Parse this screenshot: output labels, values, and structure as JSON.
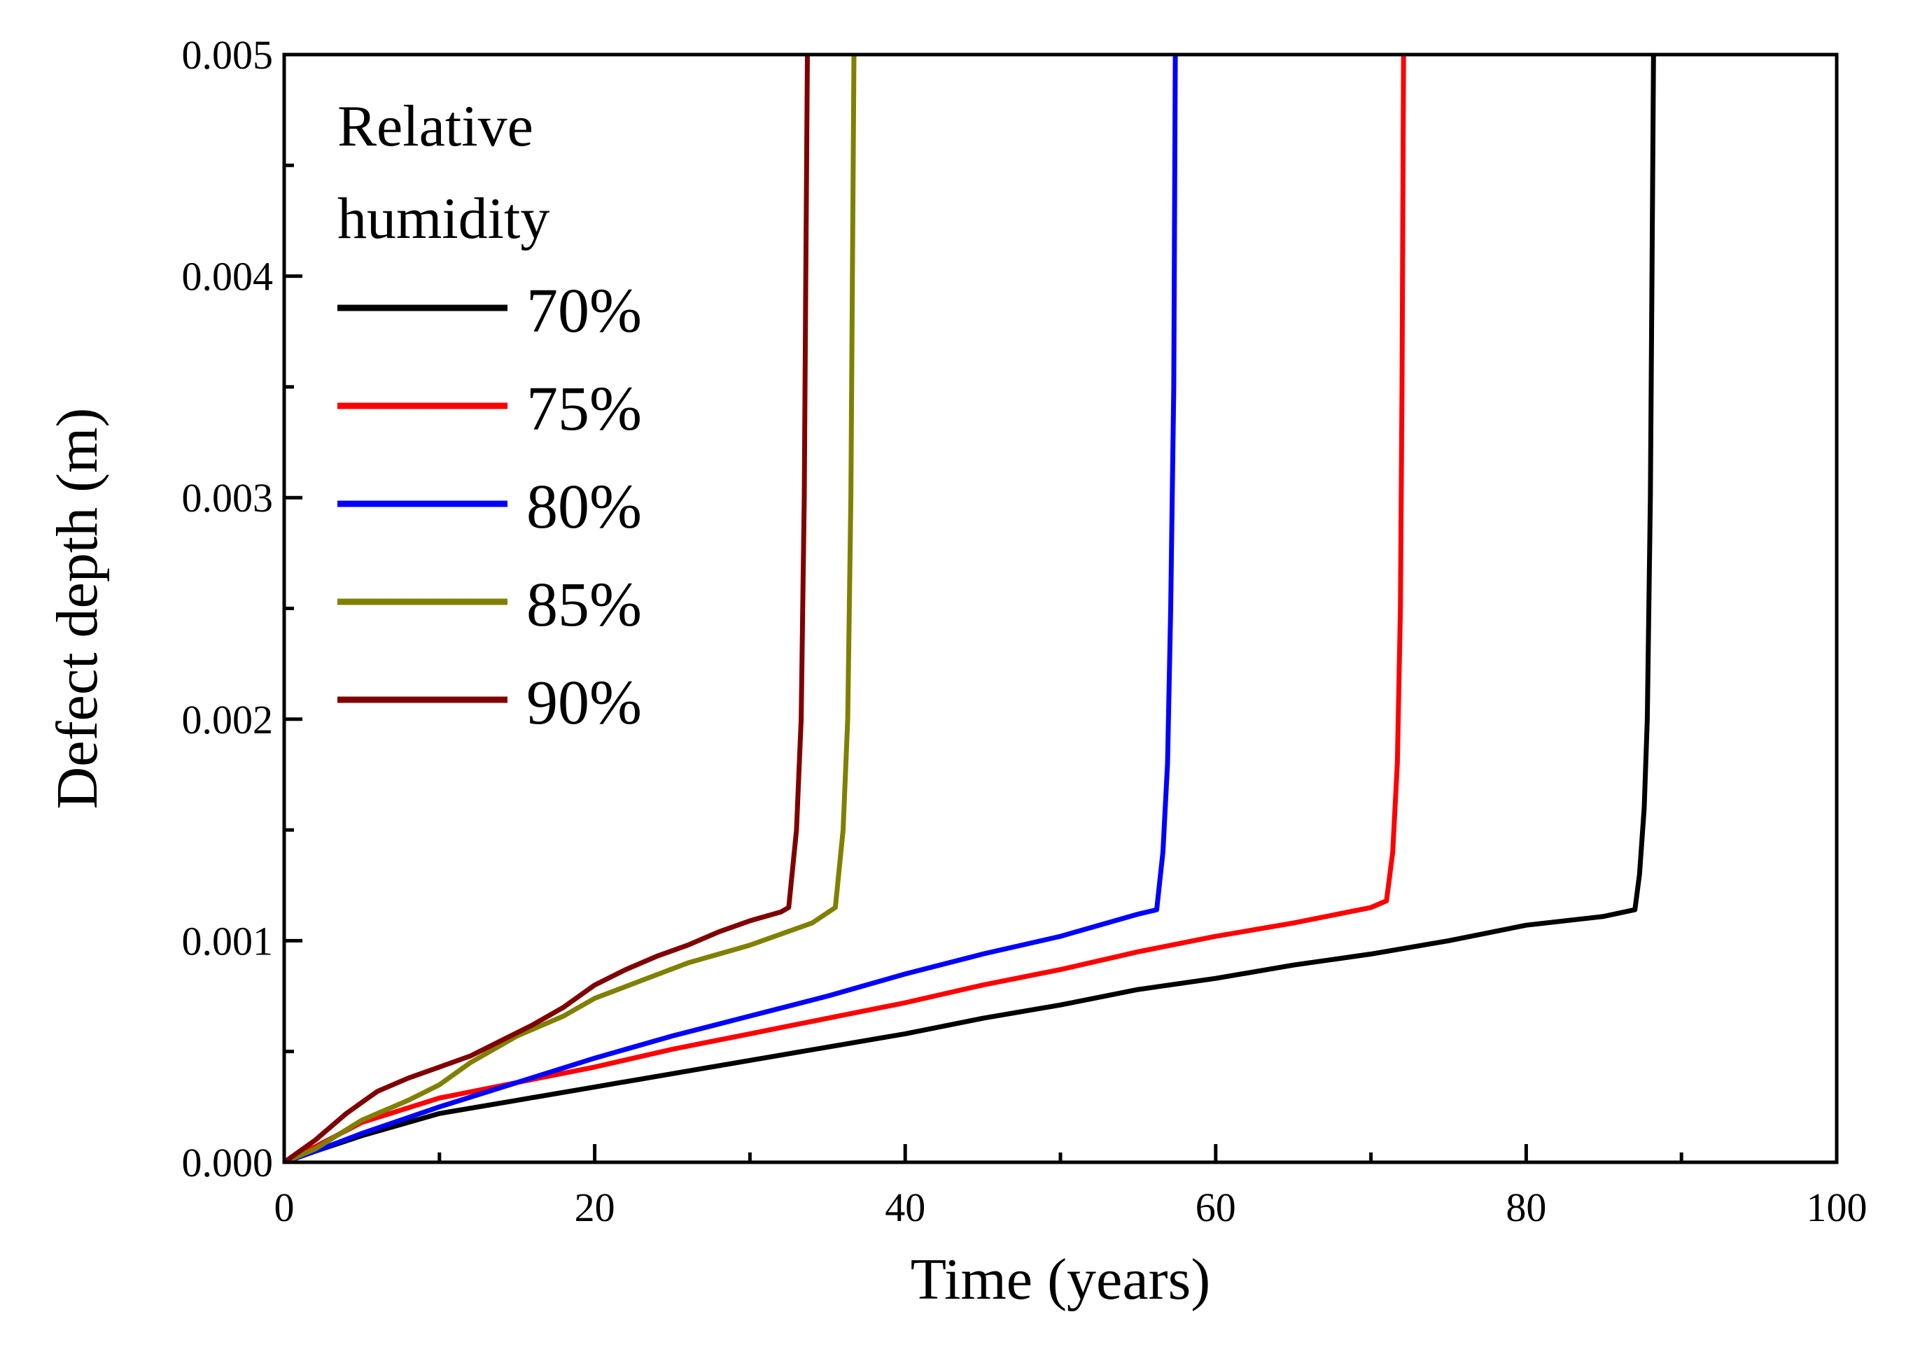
{
  "chart_data": {
    "type": "line",
    "title": "",
    "xlabel": "Time (years)",
    "ylabel": "Defect depth (m)",
    "xlim": [
      0,
      100
    ],
    "ylim": [
      0,
      0.005
    ],
    "x_ticks": [
      0,
      20,
      40,
      60,
      80,
      100
    ],
    "x_tick_labels": [
      "0",
      "20",
      "40",
      "60",
      "80",
      "100"
    ],
    "y_ticks": [
      0,
      0.001,
      0.002,
      0.003,
      0.004,
      0.005
    ],
    "y_tick_labels": [
      "0.000",
      "0.001",
      "0.002",
      "0.003",
      "0.004",
      "0.005"
    ],
    "grid": false,
    "legend": {
      "title_lines": [
        "Relative",
        "humidity"
      ],
      "position": "top-left"
    },
    "series": [
      {
        "name": "70%",
        "color": "#000000",
        "x": [
          0,
          2,
          5,
          10,
          15,
          20,
          25,
          30,
          35,
          40,
          45,
          50,
          55,
          60,
          65,
          70,
          75,
          80,
          85,
          87,
          87.3,
          87.6,
          87.8,
          88.0,
          88.1,
          88.2
        ],
        "y": [
          0,
          5e-05,
          0.00012,
          0.00022,
          0.00028,
          0.00034,
          0.0004,
          0.00046,
          0.00052,
          0.00058,
          0.00065,
          0.00071,
          0.00078,
          0.00083,
          0.00089,
          0.00094,
          0.001,
          0.00107,
          0.00111,
          0.00114,
          0.0013,
          0.0016,
          0.002,
          0.003,
          0.004,
          0.005
        ]
      },
      {
        "name": "75%",
        "color": "#ff0000",
        "x": [
          0,
          2,
          5,
          10,
          15,
          20,
          25,
          30,
          35,
          40,
          45,
          50,
          55,
          60,
          65,
          70,
          71,
          71.4,
          71.7,
          71.9,
          72.0,
          72.1
        ],
        "y": [
          0,
          7e-05,
          0.00018,
          0.00029,
          0.00036,
          0.00043,
          0.00051,
          0.00058,
          0.00065,
          0.00072,
          0.0008,
          0.00087,
          0.00095,
          0.00102,
          0.00108,
          0.00115,
          0.00118,
          0.0014,
          0.0018,
          0.0025,
          0.0035,
          0.005
        ]
      },
      {
        "name": "80%",
        "color": "#0000ff",
        "x": [
          0,
          2,
          5,
          10,
          15,
          20,
          25,
          30,
          35,
          40,
          45,
          50,
          55,
          56.2,
          56.6,
          56.9,
          57.1,
          57.3,
          57.4
        ],
        "y": [
          0,
          5e-05,
          0.00013,
          0.00025,
          0.00036,
          0.00047,
          0.00057,
          0.00066,
          0.00075,
          0.00085,
          0.00094,
          0.00102,
          0.00112,
          0.00114,
          0.0014,
          0.0018,
          0.0025,
          0.0035,
          0.005
        ]
      },
      {
        "name": "85%",
        "color": "#808000",
        "x": [
          0,
          2,
          5,
          8,
          10,
          12,
          15,
          18,
          20,
          23,
          26,
          30,
          34,
          35.5,
          36.0,
          36.3,
          36.5,
          36.6,
          36.7
        ],
        "y": [
          0,
          6e-05,
          0.00019,
          0.00028,
          0.00035,
          0.00045,
          0.00057,
          0.00066,
          0.00074,
          0.00082,
          0.0009,
          0.00098,
          0.00108,
          0.00115,
          0.0015,
          0.002,
          0.003,
          0.004,
          0.005
        ]
      },
      {
        "name": "90%",
        "color": "#800000",
        "x": [
          0,
          2,
          4,
          6,
          8,
          10,
          12,
          14,
          16,
          18,
          20,
          22,
          24,
          26,
          28,
          30,
          32,
          32.5,
          33.0,
          33.3,
          33.5,
          33.6,
          33.7
        ],
        "y": [
          0,
          0.0001,
          0.00022,
          0.00032,
          0.00038,
          0.00043,
          0.00048,
          0.00055,
          0.00062,
          0.0007,
          0.0008,
          0.00087,
          0.00093,
          0.00098,
          0.00104,
          0.00109,
          0.00113,
          0.00115,
          0.0015,
          0.002,
          0.003,
          0.004,
          0.005
        ]
      }
    ]
  }
}
